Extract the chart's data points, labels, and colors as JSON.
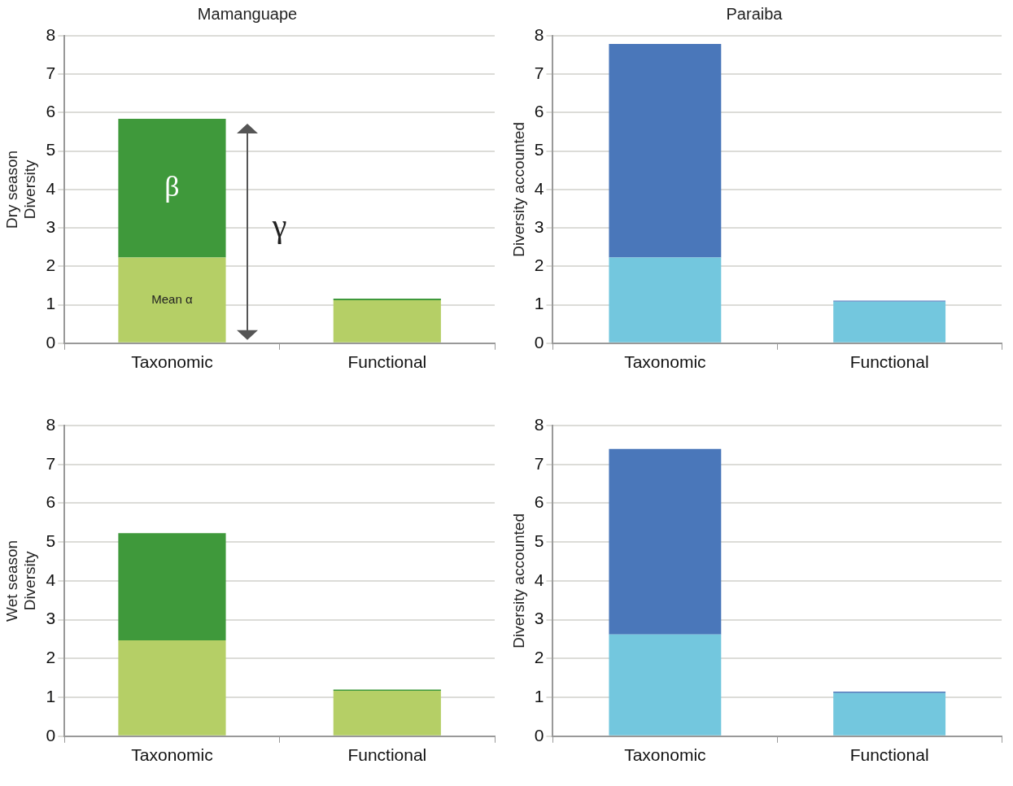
{
  "chart_data": [
    {
      "type": "bar",
      "title": "Mamanguape",
      "ylabel": "Dry season\nDiversity",
      "categories": [
        "Taxonomic",
        "Functional"
      ],
      "stacked": true,
      "ylim": [
        0,
        8
      ],
      "yticks": [
        0,
        1,
        2,
        3,
        4,
        5,
        6,
        7,
        8
      ],
      "grid": "y",
      "series": [
        {
          "color": "#b5cf66",
          "values": [
            2.23,
            1.12
          ]
        },
        {
          "color": "#3f993b",
          "values": [
            3.61,
            0.04
          ]
        }
      ],
      "annotations": [
        "Mean α",
        "β",
        "γ"
      ]
    },
    {
      "type": "bar",
      "title": "Paraiba",
      "ylabel": "Diversity accounted",
      "categories": [
        "Taxonomic",
        "Functional"
      ],
      "stacked": true,
      "ylim": [
        0,
        8
      ],
      "yticks": [
        0,
        1,
        2,
        3,
        4,
        5,
        6,
        7,
        8
      ],
      "grid": "y",
      "series": [
        {
          "color": "#73c7de",
          "values": [
            2.23,
            1.08
          ]
        },
        {
          "color": "#4a77ba",
          "values": [
            5.56,
            0.03
          ]
        }
      ]
    },
    {
      "type": "bar",
      "ylabel": "Wet season\nDiversity",
      "categories": [
        "Taxonomic",
        "Functional"
      ],
      "stacked": true,
      "ylim": [
        0,
        8
      ],
      "yticks": [
        0,
        1,
        2,
        3,
        4,
        5,
        6,
        7,
        8
      ],
      "grid": "y",
      "series": [
        {
          "color": "#b5cf66",
          "values": [
            2.47,
            1.17
          ]
        },
        {
          "color": "#3f993b",
          "values": [
            2.76,
            0.03
          ]
        }
      ]
    },
    {
      "type": "bar",
      "ylabel": "Diversity accounted",
      "categories": [
        "Taxonomic",
        "Functional"
      ],
      "stacked": true,
      "ylim": [
        0,
        8
      ],
      "yticks": [
        0,
        1,
        2,
        3,
        4,
        5,
        6,
        7,
        8
      ],
      "grid": "y",
      "series": [
        {
          "color": "#73c7de",
          "values": [
            2.62,
            1.11
          ]
        },
        {
          "color": "#4a77ba",
          "values": [
            4.78,
            0.04
          ]
        }
      ]
    }
  ]
}
